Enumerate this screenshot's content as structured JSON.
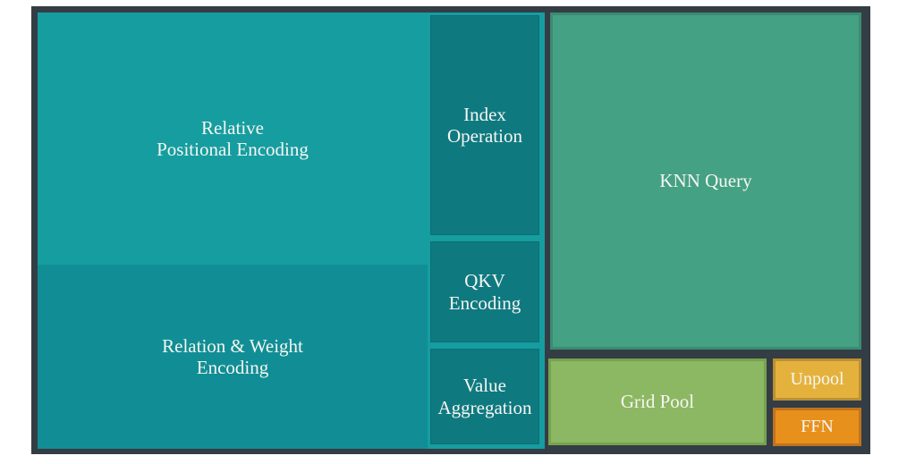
{
  "figure": {
    "kind": "treemap",
    "background_color": "#ffffff",
    "frame_color": "#343d44",
    "text_color": "#f5f6f2"
  },
  "blocks": {
    "relative_positional_encoding": {
      "label": "Relative\nPositional Encoding",
      "color": "#169da0"
    },
    "relation_weight_encoding": {
      "label": "Relation & Weight\nEncoding",
      "color": "#118e95"
    },
    "index_operation": {
      "label": "Index\nOperation",
      "color": "#0f7980"
    },
    "qkv_encoding": {
      "label": "QKV\nEncoding",
      "color": "#0f7980"
    },
    "value_aggregation": {
      "label": "Value\nAggregation",
      "color": "#0f7980"
    },
    "knn_query": {
      "label": "KNN Query",
      "color": "#45a183"
    },
    "grid_pool": {
      "label": "Grid Pool",
      "color": "#8db863"
    },
    "unpool": {
      "label": "Unpool",
      "color": "#e4b23c"
    },
    "ffn": {
      "label": "FFN",
      "color": "#e8901c"
    }
  },
  "chart_data": {
    "type": "treemap",
    "title": "",
    "legend": "none",
    "items": [
      {
        "label": "KNN Query",
        "area_pct_est": 30.1,
        "color": "#45a183"
      },
      {
        "label": "Relative Positional Encoding",
        "area_pct_est": 28.5,
        "color": "#169da0"
      },
      {
        "label": "Relation & Weight Encoding",
        "area_pct_est": 20.8,
        "color": "#118e95"
      },
      {
        "label": "Index Operation",
        "area_pct_est": 6.9,
        "color": "#0f7980"
      },
      {
        "label": "Grid Pool",
        "area_pct_est": 5.4,
        "color": "#8db863"
      },
      {
        "label": "QKV Encoding",
        "area_pct_est": 3.2,
        "color": "#0f7980"
      },
      {
        "label": "Value Aggregation",
        "area_pct_est": 3.0,
        "color": "#0f7980"
      },
      {
        "label": "Unpool",
        "area_pct_est": 1.1,
        "color": "#e4b23c"
      },
      {
        "label": "FFN",
        "area_pct_est": 1.0,
        "color": "#e8901c"
      }
    ],
    "notes": "No numeric values are printed in the figure; area percentages estimated from rendered block areas."
  }
}
